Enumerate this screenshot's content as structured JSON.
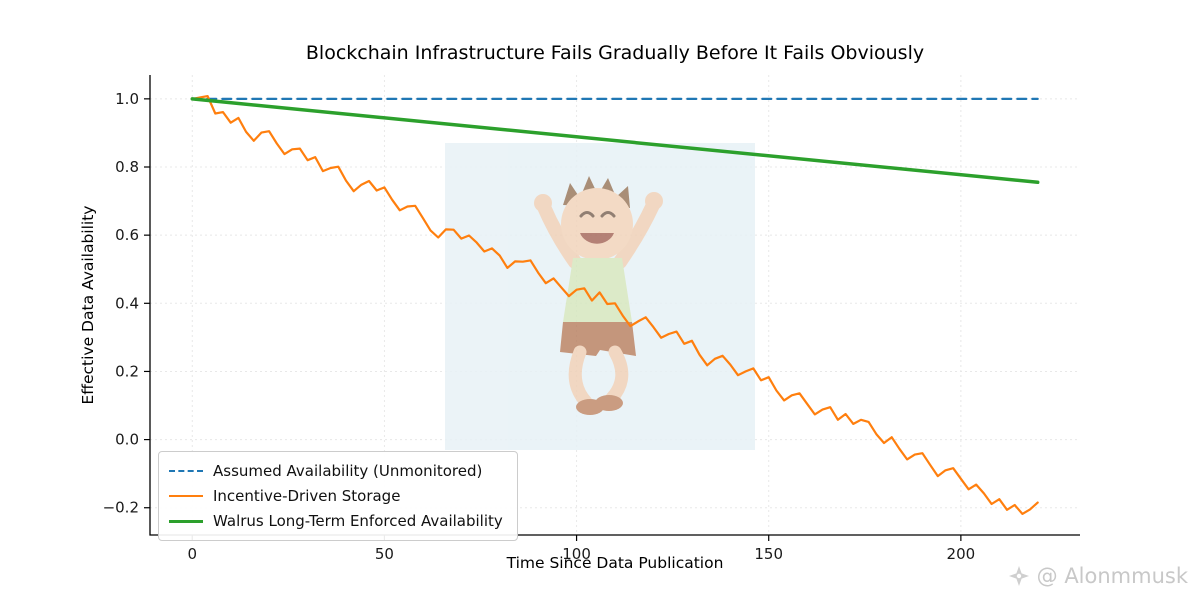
{
  "chart_data": {
    "type": "line",
    "title": "Blockchain Infrastructure Fails Gradually Before It Fails Obviously",
    "xlabel": "Time Since Data Publication",
    "ylabel": "Effective Data Availability",
    "xlim": [
      -11,
      231
    ],
    "ylim": [
      -0.28,
      1.07
    ],
    "x_ticks": [
      0,
      50,
      100,
      150,
      200
    ],
    "x_tick_labels": [
      "0",
      "50",
      "100",
      "150",
      "200"
    ],
    "y_ticks": [
      -0.2,
      0.0,
      0.2,
      0.4,
      0.6,
      0.8,
      1.0
    ],
    "y_tick_labels": [
      "−0.2",
      "0.0",
      "0.2",
      "0.4",
      "0.6",
      "0.8",
      "1.0"
    ],
    "grid": true,
    "legend_position": "lower left",
    "series": [
      {
        "name": "Assumed Availability (Unmonitored)",
        "color": "#1f77b4",
        "style": "dashed",
        "width": 2.2,
        "x": [
          0,
          220
        ],
        "y": [
          1.0,
          1.0
        ]
      },
      {
        "name": "Incentive-Driven Storage",
        "color": "#ff7f0e",
        "style": "solid",
        "width": 2.2,
        "x": [
          0,
          2,
          4,
          6,
          8,
          10,
          12,
          14,
          16,
          18,
          20,
          22,
          24,
          26,
          28,
          30,
          32,
          34,
          36,
          38,
          40,
          42,
          44,
          46,
          48,
          50,
          52,
          54,
          56,
          58,
          60,
          62,
          64,
          66,
          68,
          70,
          72,
          74,
          76,
          78,
          80,
          82,
          84,
          86,
          88,
          90,
          92,
          94,
          96,
          98,
          100,
          102,
          104,
          106,
          108,
          110,
          112,
          114,
          116,
          118,
          120,
          122,
          124,
          126,
          128,
          130,
          132,
          134,
          136,
          138,
          140,
          142,
          144,
          146,
          148,
          150,
          152,
          154,
          156,
          158,
          160,
          162,
          164,
          166,
          168,
          170,
          172,
          174,
          176,
          178,
          180,
          182,
          184,
          186,
          188,
          190,
          192,
          194,
          196,
          198,
          200,
          202,
          204,
          206,
          208,
          210,
          212,
          214,
          216,
          218,
          220
        ],
        "y": [
          1.0,
          1.004,
          1.008,
          0.957,
          0.961,
          0.93,
          0.944,
          0.903,
          0.877,
          0.901,
          0.905,
          0.869,
          0.838,
          0.852,
          0.854,
          0.82,
          0.829,
          0.788,
          0.797,
          0.801,
          0.76,
          0.729,
          0.748,
          0.759,
          0.731,
          0.74,
          0.704,
          0.673,
          0.684,
          0.686,
          0.65,
          0.614,
          0.593,
          0.617,
          0.616,
          0.59,
          0.599,
          0.578,
          0.552,
          0.561,
          0.54,
          0.504,
          0.523,
          0.522,
          0.526,
          0.49,
          0.459,
          0.473,
          0.447,
          0.421,
          0.44,
          0.444,
          0.408,
          0.432,
          0.398,
          0.4,
          0.364,
          0.333,
          0.347,
          0.359,
          0.33,
          0.299,
          0.31,
          0.317,
          0.281,
          0.29,
          0.249,
          0.218,
          0.237,
          0.246,
          0.22,
          0.189,
          0.2,
          0.209,
          0.174,
          0.183,
          0.144,
          0.115,
          0.13,
          0.136,
          0.105,
          0.074,
          0.088,
          0.095,
          0.058,
          0.075,
          0.046,
          0.058,
          0.052,
          0.016,
          -0.01,
          0.007,
          -0.027,
          -0.058,
          -0.044,
          -0.04,
          -0.074,
          -0.107,
          -0.09,
          -0.084,
          -0.115,
          -0.146,
          -0.132,
          -0.158,
          -0.189,
          -0.175,
          -0.206,
          -0.192,
          -0.218,
          -0.205,
          -0.185
        ]
      },
      {
        "name": "Walrus Long-Term Enforced Availability",
        "color": "#2ca02c",
        "style": "solid",
        "width": 3.5,
        "x": [
          0,
          220
        ],
        "y": [
          1.0,
          0.755
        ]
      }
    ]
  },
  "overlay_image": {
    "description": "Cartoon child jumping with joy (pale blue watermark image in plot center)",
    "background_color": "#e7f1f6"
  },
  "watermark": {
    "credit": "@ Alonmmusk",
    "icon": "sparkle-logo-icon"
  }
}
